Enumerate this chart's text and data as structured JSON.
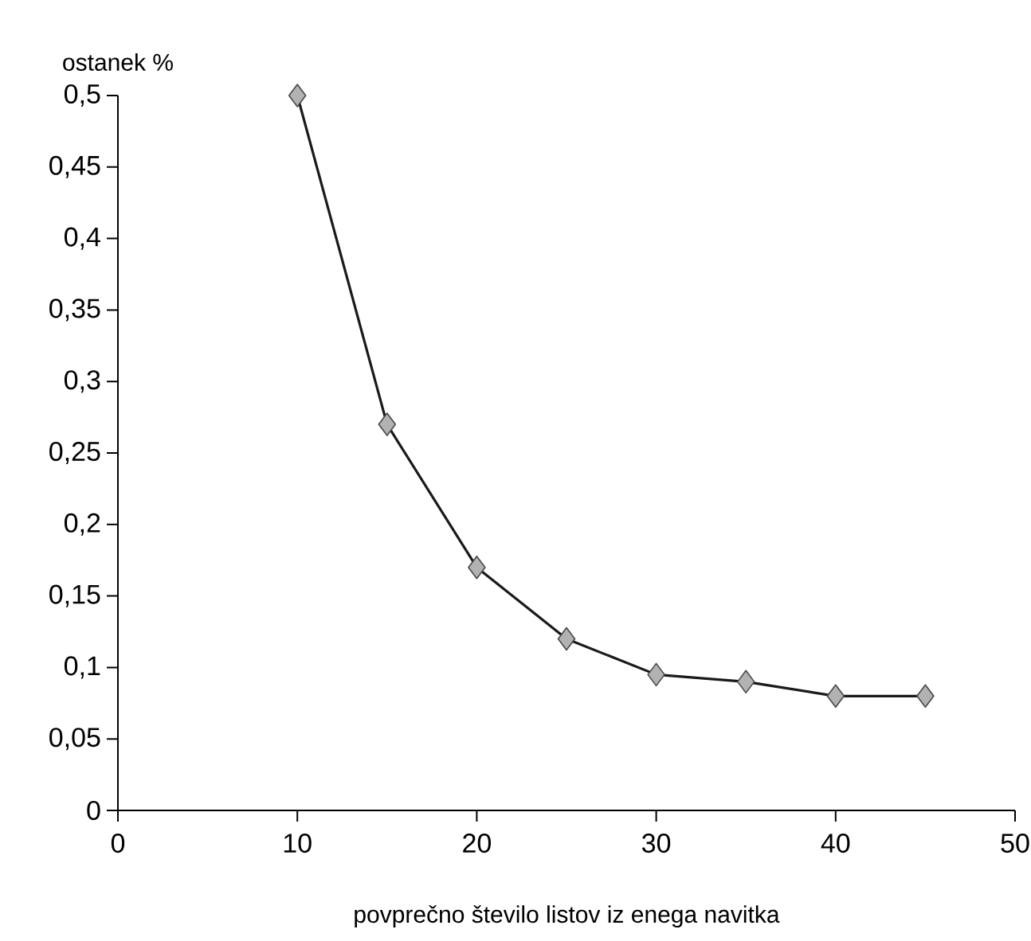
{
  "chart_data": {
    "type": "line",
    "ylabel": "ostanek %",
    "xlabel": "povprečno število listov iz enega navitka",
    "x": [
      10,
      15,
      20,
      25,
      30,
      35,
      40,
      45
    ],
    "series": [
      {
        "color": "#1a1a1a",
        "values": [
          0.5,
          0.27,
          0.17,
          0.12,
          0.095,
          0.09,
          0.08,
          0.08
        ]
      }
    ],
    "xlim": [
      0,
      50
    ],
    "ylim": [
      0,
      0.5
    ],
    "xticks": [
      0,
      10,
      20,
      30,
      40,
      50
    ],
    "yticks": [
      {
        "value": 0,
        "label": "0"
      },
      {
        "value": 0.05,
        "label": "0,05"
      },
      {
        "value": 0.1,
        "label": "0,1"
      },
      {
        "value": 0.15,
        "label": "0,15"
      },
      {
        "value": 0.2,
        "label": "0,2"
      },
      {
        "value": 0.25,
        "label": "0,25"
      },
      {
        "value": 0.3,
        "label": "0,3"
      },
      {
        "value": 0.35,
        "label": "0,35"
      },
      {
        "value": 0.4,
        "label": "0,4"
      },
      {
        "value": 0.45,
        "label": "0,45"
      },
      {
        "value": 0.5,
        "label": "0,5"
      }
    ],
    "marker": "diamond",
    "line_style": "solid",
    "grid": false
  }
}
